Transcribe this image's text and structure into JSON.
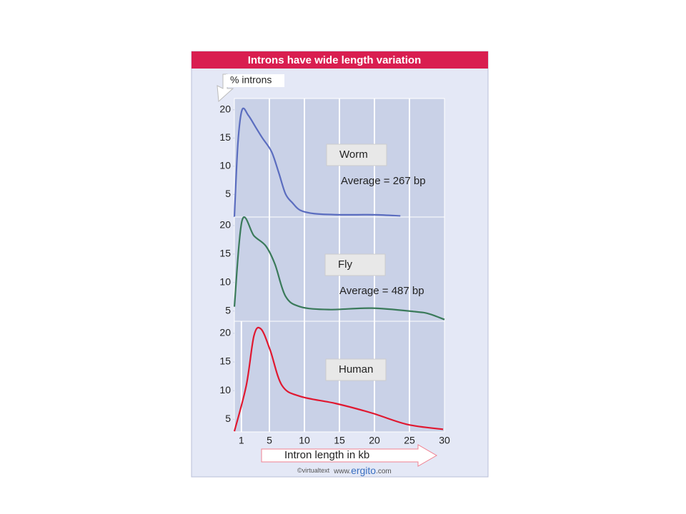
{
  "figure": {
    "title": "Introns have wide length variation",
    "credit": [
      "©virtualtext",
      "www.",
      "ergito",
      ".com"
    ]
  },
  "chart_data": [
    {
      "type": "line",
      "ylabel": "% introns",
      "xlim": [
        0,
        30
      ],
      "ylim": [
        1,
        22
      ],
      "yticks": [
        5,
        10,
        15,
        20
      ],
      "xticks": [
        5,
        10,
        15,
        20,
        25
      ],
      "annotation": "Average = 267 bp",
      "series": [
        {
          "name": "Worm",
          "color": "#5b6dbf",
          "x": [
            0,
            0.5,
            1.1,
            2,
            3,
            4,
            5.3,
            6.3,
            7.3,
            8.3,
            9.4,
            11.4,
            15,
            20,
            23.7
          ],
          "values": [
            1,
            14,
            20,
            19,
            17,
            15,
            12.6,
            9,
            5.1,
            3.5,
            2.2,
            1.6,
            1.4,
            1.4,
            1.2
          ]
        }
      ]
    },
    {
      "type": "line",
      "xlim": [
        0,
        30
      ],
      "ylim": [
        3.2,
        21.5
      ],
      "yticks": [
        5,
        10,
        15,
        20
      ],
      "xticks": [
        5,
        10,
        15,
        20,
        25
      ],
      "annotation": "Average = 487 bp",
      "series": [
        {
          "name": "Fly",
          "color": "#3a7a5a",
          "x": [
            0,
            1.1,
            2.8,
            4.5,
            5.8,
            7.3,
            9.4,
            13.5,
            19.6,
            25.7,
            27.8,
            30
          ],
          "values": [
            5.75,
            20.9,
            18.2,
            16.4,
            13.2,
            7.6,
            5.75,
            5.25,
            5.5,
            4.9,
            4.5,
            3.5
          ]
        }
      ]
    },
    {
      "type": "line",
      "xlabel": "Intron length in kb",
      "xlim": [
        0,
        30
      ],
      "ylim": [
        2.8,
        22.1
      ],
      "yticks": [
        5,
        10,
        15,
        20
      ],
      "xticks": [
        1,
        5,
        10,
        15,
        20,
        25,
        30
      ],
      "series": [
        {
          "name": "Human",
          "color": "#e01830",
          "x": [
            0,
            1.7,
            2.8,
            3.8,
            5.1,
            6.8,
            9.4,
            14.5,
            19.6,
            24.7,
            29.8
          ],
          "values": [
            2.9,
            10.9,
            19.6,
            20.75,
            17.1,
            10.9,
            9,
            7.75,
            6.1,
            4.1,
            3.25
          ]
        }
      ]
    }
  ]
}
